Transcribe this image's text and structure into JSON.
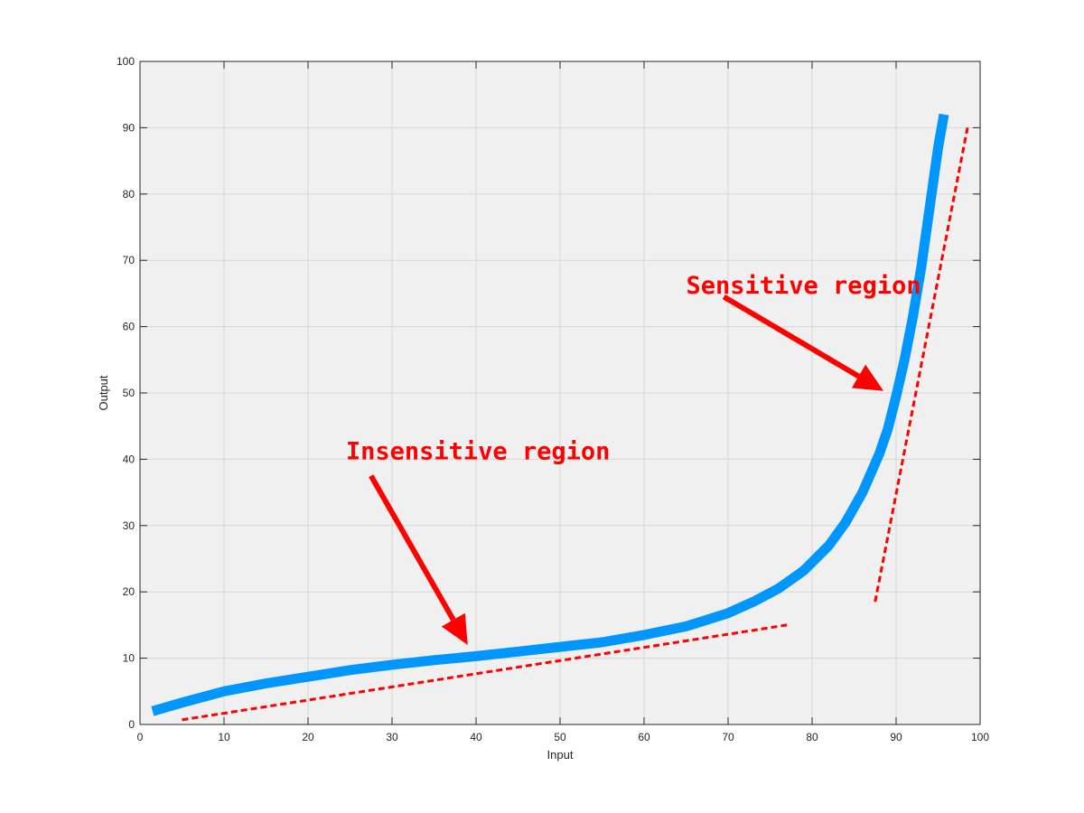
{
  "chart_data": {
    "type": "line",
    "title": "",
    "xlabel": "Input",
    "ylabel": "Output",
    "xlim": [
      0,
      100
    ],
    "ylim": [
      0,
      100
    ],
    "xticks": [
      0,
      10,
      20,
      30,
      40,
      50,
      60,
      70,
      80,
      90,
      100
    ],
    "yticks": [
      0,
      10,
      20,
      30,
      40,
      50,
      60,
      70,
      80,
      90,
      100
    ],
    "grid": true,
    "series": [
      {
        "color": "#0096ff",
        "x": [
          1.5,
          5,
          10,
          15,
          20,
          25,
          30,
          35,
          40,
          45,
          50,
          55,
          60,
          65,
          70,
          73,
          76,
          79,
          82,
          84,
          86,
          88,
          89,
          90,
          91,
          92,
          93,
          94,
          95,
          95.7
        ],
        "y": [
          2,
          3.3,
          5,
          6.2,
          7.2,
          8.2,
          9,
          9.7,
          10.3,
          11,
          11.7,
          12.4,
          13.5,
          14.8,
          16.8,
          18.5,
          20.5,
          23.2,
          27,
          30.5,
          35,
          40.8,
          44.5,
          49.5,
          55,
          61.5,
          69,
          78,
          87,
          92
        ]
      }
    ],
    "reference_lines": [
      {
        "style": "dashed",
        "color": "#ff0000",
        "from": [
          5,
          0.7
        ],
        "to": [
          77,
          15
        ]
      },
      {
        "style": "dashed",
        "color": "#ff0000",
        "from": [
          87.5,
          18.5
        ],
        "to": [
          98.5,
          90
        ]
      }
    ],
    "annotations": [
      {
        "text": "Sensitive region",
        "color": "#ff0000",
        "text_at": [
          65,
          65
        ],
        "arrow_from": [
          69.5,
          64.5
        ],
        "arrow_to": [
          88.5,
          50.3
        ]
      },
      {
        "text": "Insensitive region",
        "color": "#ff0000",
        "text_at": [
          24.5,
          40
        ],
        "arrow_from": [
          27.5,
          37.5
        ],
        "arrow_to": [
          39,
          12
        ]
      }
    ]
  }
}
